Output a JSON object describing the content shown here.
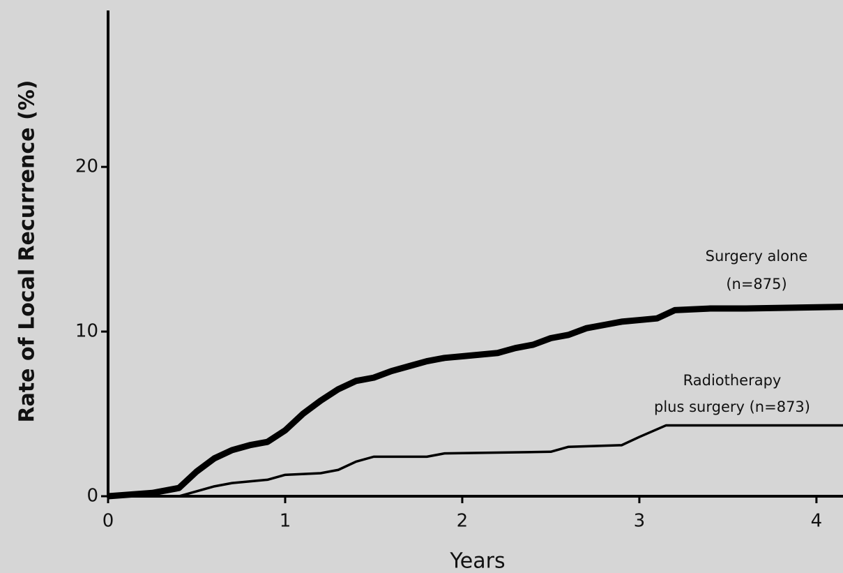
{
  "chart_data": {
    "type": "line",
    "x_label": "Years",
    "y_label": "Rate of Local Recurrence (%)",
    "xlim": [
      0,
      4.15
    ],
    "ylim": [
      0,
      29.5
    ],
    "xticks": [
      0,
      1,
      2,
      3,
      4
    ],
    "yticks": [
      0,
      10,
      20
    ],
    "annotations": [
      "Surgery alone",
      "(n=875)",
      "Radiotherapy",
      "plus surgery (n=873)"
    ],
    "series": [
      {
        "color": "#000000",
        "x": [
          0,
          0.25,
          0.4,
          0.5,
          0.6,
          0.7,
          0.8,
          0.9,
          1.0,
          1.1,
          1.2,
          1.3,
          1.4,
          1.5,
          1.6,
          1.7,
          1.8,
          1.9,
          2.0,
          2.1,
          2.2,
          2.3,
          2.4,
          2.5,
          2.6,
          2.7,
          2.8,
          2.9,
          3.0,
          3.1,
          3.2,
          3.4,
          3.6,
          4.15
        ],
        "values": [
          0,
          0.2,
          0.5,
          1.5,
          2.3,
          2.8,
          3.1,
          3.3,
          4.0,
          5.0,
          5.8,
          6.5,
          7.0,
          7.2,
          7.6,
          7.9,
          8.2,
          8.4,
          8.5,
          8.6,
          8.7,
          9.0,
          9.2,
          9.6,
          9.8,
          10.2,
          10.4,
          10.6,
          10.7,
          10.8,
          11.3,
          11.4,
          11.4,
          11.5
        ]
      },
      {
        "color": "#000000",
        "x": [
          0,
          0.4,
          0.5,
          0.6,
          0.7,
          0.8,
          0.9,
          1.0,
          1.2,
          1.3,
          1.4,
          1.5,
          1.8,
          1.9,
          2.5,
          2.6,
          2.9,
          3.0,
          3.15,
          4.15
        ],
        "values": [
          0,
          0,
          0.3,
          0.6,
          0.8,
          0.9,
          1.0,
          1.3,
          1.4,
          1.6,
          2.1,
          2.4,
          2.4,
          2.6,
          2.7,
          3.0,
          3.1,
          3.6,
          4.3,
          4.3
        ]
      }
    ]
  }
}
